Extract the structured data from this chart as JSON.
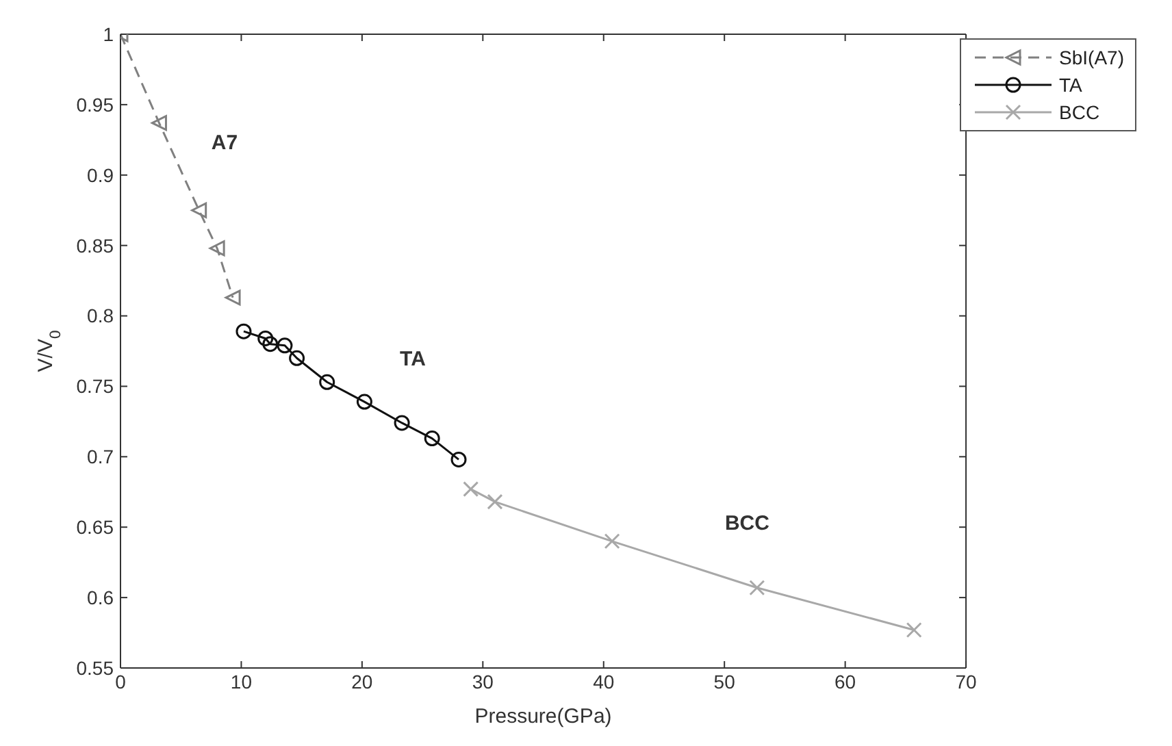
{
  "chart_data": {
    "type": "line",
    "xlabel": "Pressure(GPa)",
    "ylabel": "V/V$_{0}$",
    "xlim": [
      0,
      70
    ],
    "xticks": [
      0,
      10,
      20,
      30,
      40,
      50,
      60,
      70
    ],
    "ylim": [
      0.55,
      1
    ],
    "yticks": [
      0.55,
      0.6,
      0.65,
      0.7,
      0.75,
      0.8,
      0.85,
      0.9,
      0.95,
      1
    ],
    "grid": false,
    "legend": "top right",
    "series": [
      {
        "name": "SbI(A7)",
        "color": "#808080",
        "marker": "triangle",
        "line_style": "dashed",
        "x": [
          0,
          3.2,
          6.5,
          8.0,
          9.3
        ],
        "values": [
          1.0,
          0.937,
          0.875,
          0.848,
          0.813
        ]
      },
      {
        "name": "TA",
        "color": "#111111",
        "marker": "circle",
        "line_style": "solid",
        "x": [
          10.2,
          12.0,
          12.4,
          13.6,
          14.6,
          17.1,
          20.2,
          23.3,
          25.8,
          28.0
        ],
        "values": [
          0.789,
          0.784,
          0.78,
          0.779,
          0.77,
          0.753,
          0.739,
          0.724,
          0.713,
          0.698
        ]
      },
      {
        "name": "BCC",
        "color": "#a8a8a8",
        "marker": "cross",
        "line_style": "solid",
        "x": [
          29.0,
          31.0,
          40.7,
          52.7,
          65.7
        ],
        "values": [
          0.677,
          0.668,
          0.64,
          0.607,
          0.577
        ]
      }
    ],
    "annotations": [
      "A7",
      "TA",
      "BCC"
    ]
  }
}
